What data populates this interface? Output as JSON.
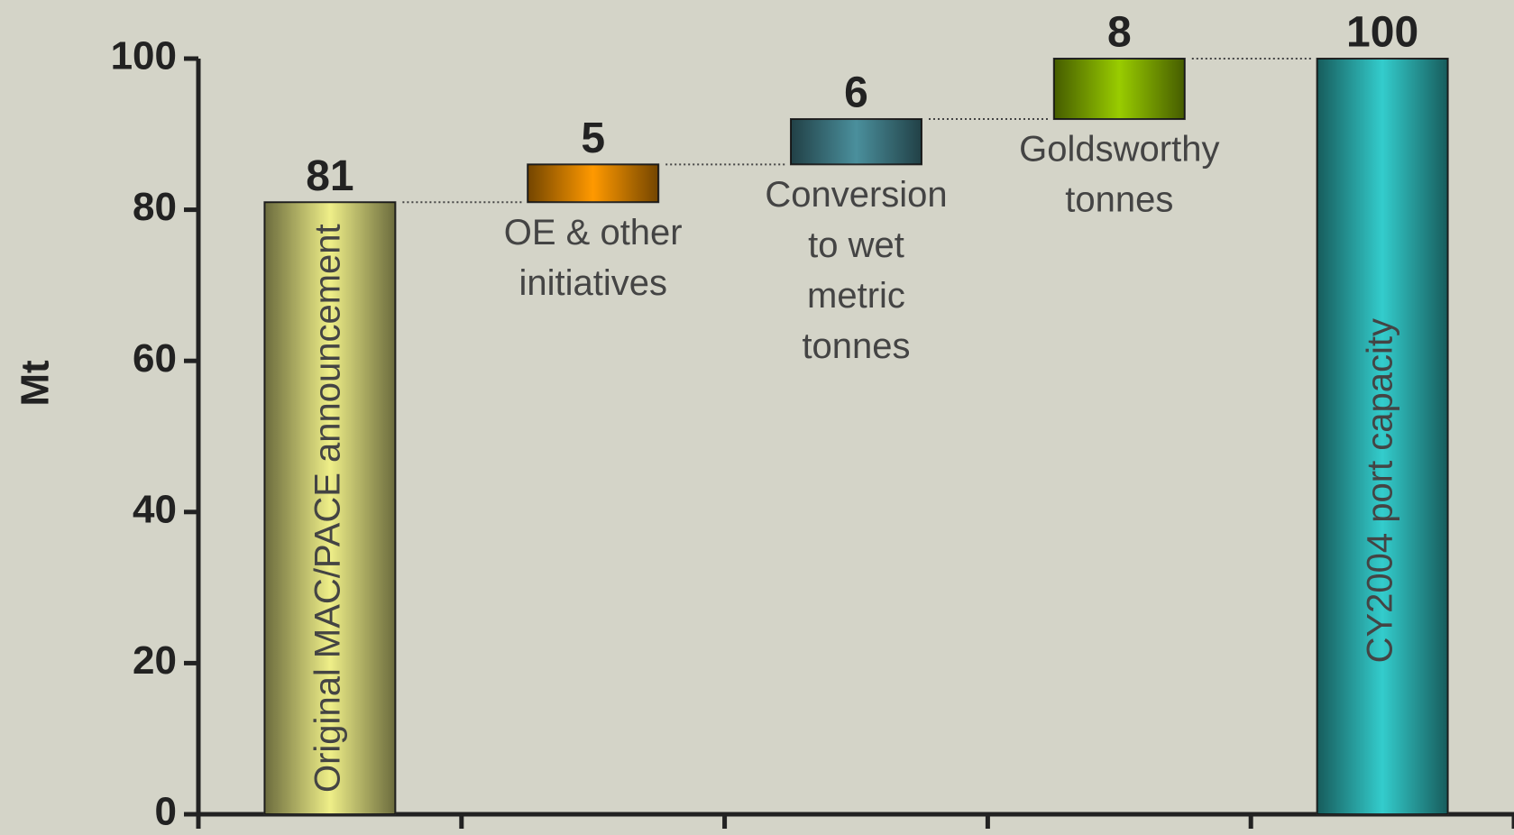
{
  "chart_data": {
    "type": "waterfall",
    "y_label": "Mt",
    "categories": [
      [
        "Original MAC/PACE announcement"
      ],
      [
        "OE & other",
        "initiatives"
      ],
      [
        "Conversion",
        "to wet",
        "metric",
        "tonnes"
      ],
      [
        "Goldsworthy",
        "tonnes"
      ],
      [
        "CY2004 port capacity"
      ]
    ],
    "values": [
      81,
      5,
      6,
      8,
      100
    ],
    "measure": [
      "absolute",
      "relative",
      "relative",
      "relative",
      "total"
    ],
    "colors": [
      "#eeee88",
      "#ff9900",
      "#4a8f9c",
      "#99cc00",
      "#33cccc"
    ],
    "ylim": [
      0,
      100
    ],
    "yticks": [
      0,
      20,
      40,
      60,
      80,
      100
    ]
  }
}
